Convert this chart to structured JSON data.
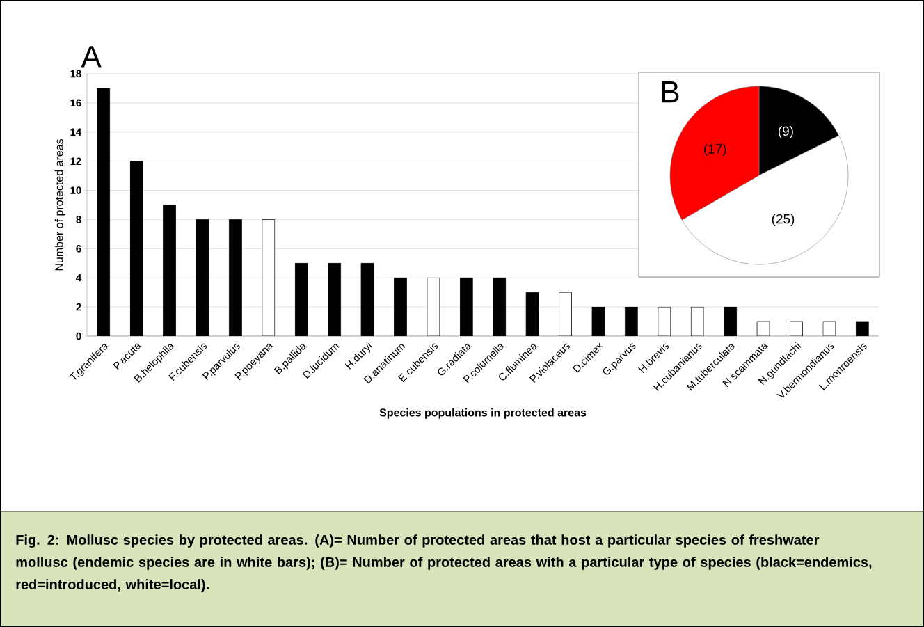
{
  "chart_data": [
    {
      "type": "bar",
      "title": "A",
      "xlabel": "Species populations in protected areas",
      "ylabel": "Number of protected areas",
      "categories": [
        "T.granifera",
        "P.acuta",
        "B.helophila",
        "F.cubensis",
        "P.parvulus",
        "P.poeyana",
        "B.pallida",
        "D.lucidum",
        "H.duryi",
        "D.anatinum",
        "E.cubensis",
        "G.radiata",
        "P.columella",
        "C.fluminea",
        "P.violaceus",
        "D.cimex",
        "G.parvus",
        "H.brevis",
        "H.cubanianus",
        "M.tuberculata",
        "N.scammata",
        "N.gundlachi",
        "V.bermondianus",
        "L.monroensis"
      ],
      "values": [
        17,
        12,
        9,
        8,
        8,
        8,
        5,
        5,
        5,
        4,
        4,
        4,
        4,
        3,
        3,
        2,
        2,
        2,
        2,
        2,
        1,
        1,
        1,
        1
      ],
      "colors": [
        "#000000",
        "#000000",
        "#000000",
        "#000000",
        "#000000",
        "#ffffff",
        "#000000",
        "#000000",
        "#000000",
        "#000000",
        "#ffffff",
        "#000000",
        "#000000",
        "#000000",
        "#ffffff",
        "#000000",
        "#000000",
        "#ffffff",
        "#ffffff",
        "#000000",
        "#ffffff",
        "#ffffff",
        "#ffffff",
        "#000000"
      ],
      "ylim": [
        0,
        18
      ],
      "yticks": [
        0,
        2,
        4,
        6,
        8,
        10,
        12,
        14,
        16,
        18
      ],
      "grid": "y",
      "annotations": [
        "Fig. 2: Mollusc species by protected areas. (A)= Number of protected areas that host a particular species of freshwater mollusc (endemic species are in white bars); (B)= Number of protected areas with a particular type of species (black=endemics, red=introduced, white=local)."
      ]
    },
    {
      "type": "pie",
      "title": "B",
      "categories": [
        null,
        null,
        null
      ],
      "values": [
        9,
        25,
        17
      ],
      "colors": [
        "#000000",
        "#ffffff",
        "#ff0000"
      ],
      "value_labels": [
        "(9)",
        "(25)",
        "(17)"
      ]
    }
  ]
}
